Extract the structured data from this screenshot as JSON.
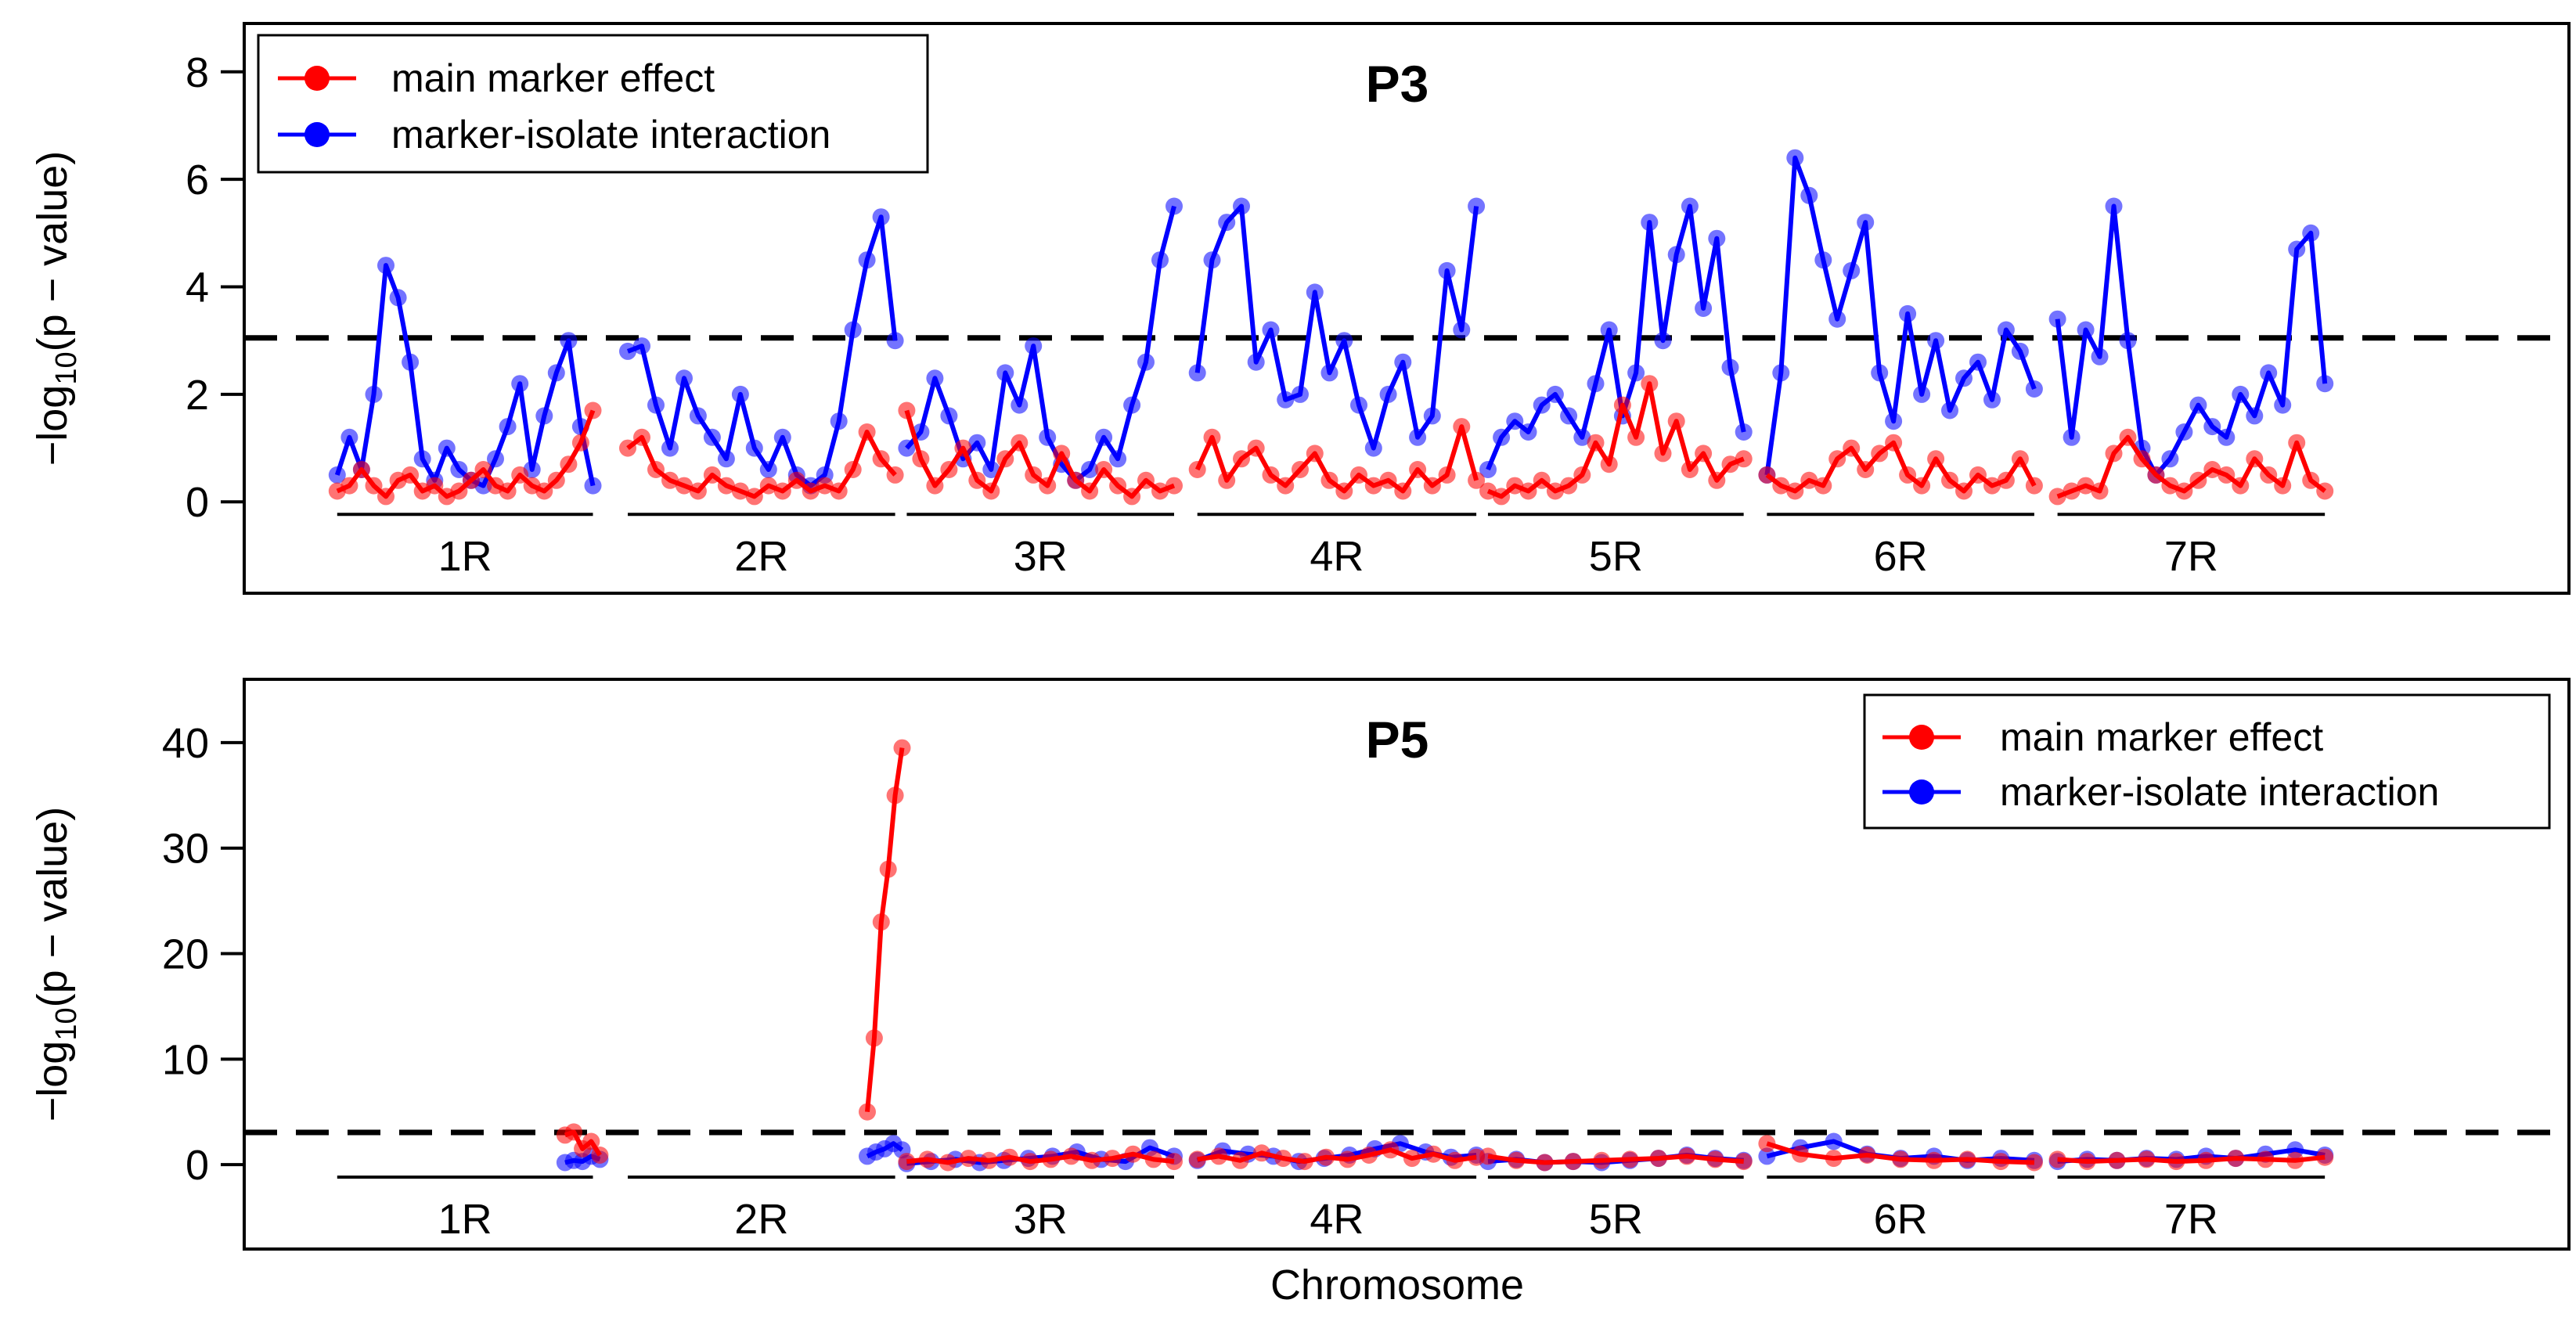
{
  "xlabel": "Chromosome",
  "colors": {
    "main": "#ff0000",
    "interaction": "#0000ff",
    "threshold": "#000000"
  },
  "chart_data": [
    {
      "type": "line",
      "title": "P3",
      "ylabel_prefix": "−log",
      "ylabel_sub": "10",
      "ylabel_suffix": "(p − value)",
      "xlabel": "",
      "ylim": [
        -1.7,
        8.9
      ],
      "yticks": [
        0,
        2,
        4,
        6,
        8
      ],
      "threshold": 3.05,
      "legend_position": "top-left",
      "legend": [
        "main marker effect",
        "marker-isolate interaction"
      ],
      "chromosomes": [
        "1R",
        "2R",
        "3R",
        "4R",
        "5R",
        "6R",
        "7R"
      ],
      "series": [
        {
          "name": "main marker effect",
          "color": "#ff0000",
          "values": [
            [
              0.2,
              0.3,
              0.6,
              0.3,
              0.1,
              0.4,
              0.5,
              0.2,
              0.3,
              0.1,
              0.2,
              0.4,
              0.6,
              0.3,
              0.2,
              0.5,
              0.3,
              0.2,
              0.4,
              0.7,
              1.1,
              1.7
            ],
            [
              1.0,
              1.2,
              0.6,
              0.4,
              0.3,
              0.2,
              0.5,
              0.3,
              0.2,
              0.1,
              0.3,
              0.2,
              0.4,
              0.2,
              0.3,
              0.2,
              0.6,
              1.3,
              0.8,
              0.5
            ],
            [
              1.7,
              0.8,
              0.3,
              0.6,
              1.0,
              0.4,
              0.2,
              0.8,
              1.1,
              0.5,
              0.3,
              0.9,
              0.4,
              0.2,
              0.6,
              0.3,
              0.1,
              0.4,
              0.2,
              0.3
            ],
            [
              0.6,
              1.2,
              0.4,
              0.8,
              1.0,
              0.5,
              0.3,
              0.6,
              0.9,
              0.4,
              0.2,
              0.5,
              0.3,
              0.4,
              0.2,
              0.6,
              0.3,
              0.5,
              1.4,
              0.4
            ],
            [
              0.2,
              0.1,
              0.3,
              0.2,
              0.4,
              0.2,
              0.3,
              0.5,
              1.1,
              0.7,
              1.8,
              1.2,
              2.2,
              0.9,
              1.5,
              0.6,
              0.9,
              0.4,
              0.7,
              0.8
            ],
            [
              0.5,
              0.3,
              0.2,
              0.4,
              0.3,
              0.8,
              1.0,
              0.6,
              0.9,
              1.1,
              0.5,
              0.3,
              0.8,
              0.4,
              0.2,
              0.5,
              0.3,
              0.4,
              0.8,
              0.3
            ],
            [
              0.1,
              0.2,
              0.3,
              0.2,
              0.9,
              1.2,
              0.8,
              0.5,
              0.3,
              0.2,
              0.4,
              0.6,
              0.5,
              0.3,
              0.8,
              0.5,
              0.3,
              1.1,
              0.4,
              0.2
            ]
          ]
        },
        {
          "name": "marker-isolate interaction",
          "color": "#0000ff",
          "values": [
            [
              0.5,
              1.2,
              0.6,
              2.0,
              4.4,
              3.8,
              2.6,
              0.8,
              0.4,
              1.0,
              0.6,
              0.4,
              0.3,
              0.8,
              1.4,
              2.2,
              0.6,
              1.6,
              2.4,
              3.0,
              1.4,
              0.3
            ],
            [
              2.8,
              2.9,
              1.8,
              1.0,
              2.3,
              1.6,
              1.2,
              0.8,
              2.0,
              1.0,
              0.6,
              1.2,
              0.5,
              0.3,
              0.5,
              1.5,
              3.2,
              4.5,
              5.3,
              3.0
            ],
            [
              1.0,
              1.3,
              2.3,
              1.6,
              0.8,
              1.1,
              0.6,
              2.4,
              1.8,
              2.9,
              1.2,
              0.7,
              0.4,
              0.6,
              1.2,
              0.8,
              1.8,
              2.6,
              4.5,
              5.5
            ],
            [
              2.4,
              4.5,
              5.2,
              5.5,
              2.6,
              3.2,
              1.9,
              2.0,
              3.9,
              2.4,
              3.0,
              1.8,
              1.0,
              2.0,
              2.6,
              1.2,
              1.6,
              4.3,
              3.2,
              5.5
            ],
            [
              0.6,
              1.2,
              1.5,
              1.3,
              1.8,
              2.0,
              1.6,
              1.2,
              2.2,
              3.2,
              1.6,
              2.4,
              5.2,
              3.0,
              4.6,
              5.5,
              3.6,
              4.9,
              2.5,
              1.3
            ],
            [
              0.5,
              2.4,
              6.4,
              5.7,
              4.5,
              3.4,
              4.3,
              5.2,
              2.4,
              1.5,
              3.5,
              2.0,
              3.0,
              1.7,
              2.3,
              2.6,
              1.9,
              3.2,
              2.8,
              2.1
            ],
            [
              3.4,
              1.2,
              3.2,
              2.7,
              5.5,
              3.0,
              1.0,
              0.5,
              0.8,
              1.3,
              1.8,
              1.4,
              1.2,
              2.0,
              1.6,
              2.4,
              1.8,
              4.7,
              5.0,
              2.2
            ]
          ]
        }
      ]
    },
    {
      "type": "line",
      "title": "P5",
      "ylabel_prefix": "−log",
      "ylabel_sub": "10",
      "ylabel_suffix": "(p − value)",
      "xlabel": "Chromosome",
      "ylim": [
        -8,
        46
      ],
      "yticks": [
        0,
        10,
        20,
        30,
        40
      ],
      "threshold": 3.05,
      "legend_position": "top-right",
      "legend": [
        "main marker effect",
        "marker-isolate interaction"
      ],
      "chromosomes": [
        "1R",
        "2R",
        "3R",
        "4R",
        "5R",
        "6R",
        "7R"
      ],
      "series": [
        {
          "name": "main marker effect",
          "color": "#ff0000",
          "values": [
            [
              2.8,
              3.1,
              1.5,
              2.2,
              0.9
            ],
            [
              5.0,
              12.0,
              23.0,
              28.0,
              35.0,
              39.5
            ],
            [
              0.3,
              0.5,
              0.2,
              0.6,
              0.4,
              0.7,
              0.3,
              0.5,
              0.8,
              0.4,
              0.6,
              1.0,
              0.5,
              0.3
            ],
            [
              0.5,
              0.8,
              0.4,
              1.1,
              0.6,
              0.3,
              0.7,
              0.5,
              0.9,
              1.4,
              0.6,
              1.0,
              0.4,
              0.7
            ],
            [
              0.8,
              0.4,
              0.2,
              0.3,
              0.4,
              0.5,
              0.6,
              0.8,
              0.5,
              0.3
            ],
            [
              2.0,
              1.0,
              0.6,
              0.9,
              0.5,
              0.4,
              0.5,
              0.3,
              0.2
            ],
            [
              0.5,
              0.3,
              0.4,
              0.5,
              0.3,
              0.4,
              0.6,
              0.5,
              0.4,
              0.7
            ]
          ]
        },
        {
          "name": "marker-isolate interaction",
          "color": "#0000ff",
          "values": [
            [
              0.2,
              0.4,
              0.3,
              0.8,
              0.5
            ],
            [
              0.8,
              1.2,
              1.5,
              2.0,
              1.4
            ],
            [
              0.1,
              0.3,
              0.5,
              0.2,
              0.4,
              0.6,
              0.8,
              1.2,
              0.5,
              0.3,
              1.6,
              0.8
            ],
            [
              0.4,
              1.3,
              1.0,
              0.8,
              0.3,
              0.6,
              0.9,
              1.5,
              2.0,
              1.2,
              0.7,
              0.9
            ],
            [
              0.3,
              0.5,
              0.2,
              0.3,
              0.2,
              0.4,
              0.6,
              0.9,
              0.6,
              0.4
            ],
            [
              0.8,
              1.6,
              2.2,
              1.0,
              0.6,
              0.8,
              0.4,
              0.6,
              0.4
            ],
            [
              0.3,
              0.5,
              0.4,
              0.6,
              0.5,
              0.8,
              0.6,
              1.0,
              1.4,
              0.9
            ]
          ]
        }
      ]
    }
  ]
}
